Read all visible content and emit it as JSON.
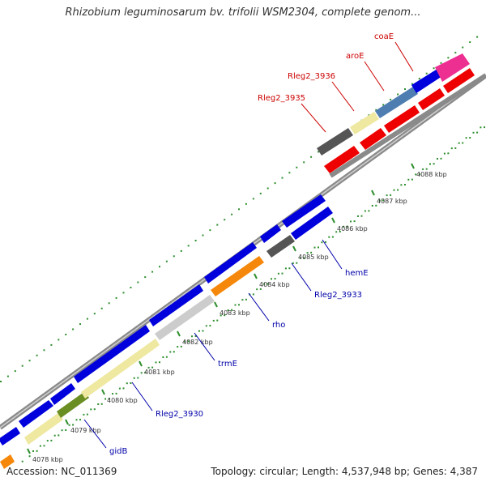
{
  "title": "Rhizobium leguminosarum bv. trifolii WSM2304, complete genom...",
  "footer": {
    "accession": "Accession: NC_011369",
    "summary": "Topology: circular; Length: 4,537,948 bp; Genes: 4,387"
  },
  "colors": {
    "dots": "#2f8f2f",
    "backbone": "#888888",
    "label_forward": "#cc0000",
    "label_reverse": "#0000aa"
  },
  "kbp_ticks": [
    "4078 kbp",
    "4079 kbp",
    "4080 kbp",
    "4081 kbp",
    "4082 kbp",
    "4083 kbp",
    "4084 kbp",
    "4085 kbp",
    "4086 kbp",
    "4087 kbp",
    "4088 kbp"
  ],
  "gene_labels": {
    "coaE": "coaE",
    "aroE": "aroE",
    "Rleg2_3936": "Rleg2_3936",
    "Rleg2_3935": "Rleg2_3935",
    "hemE": "hemE",
    "Rleg2_3933": "Rleg2_3933",
    "rho": "rho",
    "trmE": "trmE",
    "Rleg2_3930": "Rleg2_3930",
    "gidB": "gidB"
  }
}
